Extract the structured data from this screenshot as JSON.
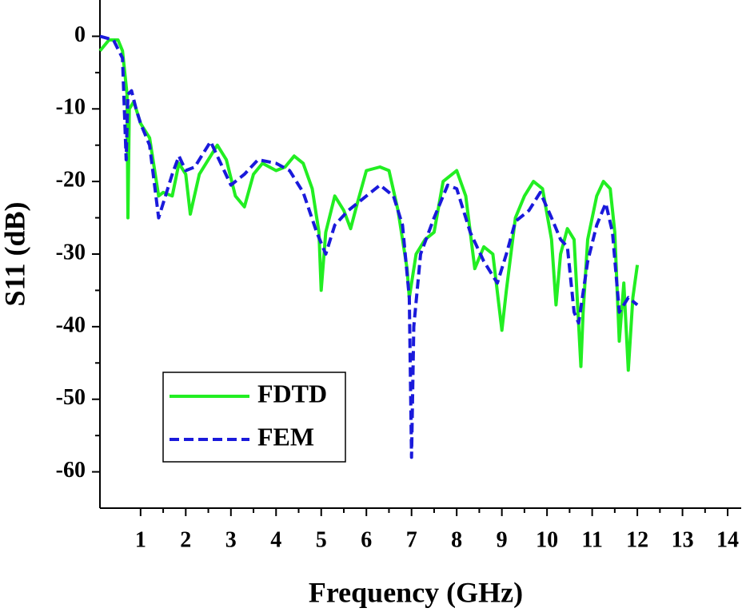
{
  "chart_data": {
    "type": "line",
    "xlabel": "Frequency (GHz)",
    "ylabel": "S11 (dB)",
    "xlim": [
      0.1,
      14.3
    ],
    "xticks": [
      1,
      2,
      3,
      4,
      5,
      6,
      7,
      8,
      9,
      10,
      11,
      12,
      13,
      14
    ],
    "ylim": [
      -65,
      5
    ],
    "yticks": [
      0,
      -10,
      -20,
      -30,
      -40,
      -50,
      -60
    ],
    "legend": "lower left",
    "series": [
      {
        "name": "FDTD",
        "color": "#22ee22",
        "dash": false,
        "x": [
          0.1,
          0.3,
          0.5,
          0.6,
          0.7,
          0.72,
          0.75,
          0.85,
          1.0,
          1.2,
          1.4,
          1.5,
          1.7,
          1.85,
          2.0,
          2.1,
          2.3,
          2.5,
          2.7,
          2.9,
          3.1,
          3.3,
          3.5,
          3.7,
          4.0,
          4.2,
          4.4,
          4.6,
          4.8,
          4.95,
          5.0,
          5.1,
          5.3,
          5.5,
          5.65,
          5.8,
          6.0,
          6.3,
          6.5,
          6.7,
          6.9,
          6.95,
          7.1,
          7.3,
          7.5,
          7.7,
          7.9,
          8.0,
          8.2,
          8.4,
          8.6,
          8.8,
          9.0,
          9.1,
          9.3,
          9.5,
          9.7,
          9.9,
          10.1,
          10.2,
          10.3,
          10.45,
          10.6,
          10.75,
          10.8,
          10.9,
          11.1,
          11.25,
          11.4,
          11.5,
          11.6,
          11.7,
          11.8,
          11.9,
          12.0
        ],
        "values": [
          -2,
          -0.5,
          -0.5,
          -2,
          -8,
          -25,
          -10,
          -9,
          -12,
          -14,
          -22,
          -21.5,
          -22,
          -17.5,
          -19,
          -24.5,
          -19,
          -17,
          -15,
          -17,
          -22,
          -23.5,
          -19,
          -17.5,
          -18.5,
          -18,
          -16.5,
          -17.5,
          -21,
          -27,
          -35,
          -27,
          -22,
          -24,
          -26.5,
          -23,
          -18.5,
          -18,
          -18.5,
          -24,
          -32,
          -36,
          -30,
          -28,
          -27,
          -20,
          -19,
          -18.5,
          -22,
          -32,
          -29,
          -30,
          -40.5,
          -35,
          -25,
          -22,
          -20,
          -21,
          -28,
          -37,
          -30,
          -26.5,
          -28,
          -45.5,
          -38,
          -28,
          -22,
          -20,
          -21,
          -27,
          -42,
          -34,
          -46,
          -36,
          -31.5
        ]
      },
      {
        "name": "FEM",
        "color": "#1a1adb",
        "dash": true,
        "x": [
          0.1,
          0.4,
          0.6,
          0.68,
          0.72,
          0.8,
          0.9,
          1.0,
          1.2,
          1.4,
          1.5,
          1.7,
          1.85,
          2.0,
          2.2,
          2.4,
          2.55,
          2.7,
          3.0,
          3.3,
          3.6,
          4.0,
          4.3,
          4.6,
          4.9,
          5.1,
          5.3,
          5.6,
          6.0,
          6.3,
          6.6,
          6.8,
          6.95,
          7.0,
          7.05,
          7.2,
          7.5,
          7.8,
          8.0,
          8.3,
          8.6,
          8.9,
          9.1,
          9.3,
          9.6,
          9.85,
          10.1,
          10.3,
          10.45,
          10.6,
          10.7,
          10.9,
          11.1,
          11.3,
          11.45,
          11.6,
          11.8,
          12.0
        ],
        "values": [
          0,
          -0.5,
          -3,
          -17,
          -8,
          -7.5,
          -10,
          -12,
          -15,
          -25,
          -23,
          -19,
          -16.5,
          -18.5,
          -18,
          -16,
          -14.5,
          -16.5,
          -20.5,
          -19,
          -17,
          -17.5,
          -18.5,
          -21.5,
          -27,
          -30,
          -26,
          -24,
          -22,
          -20.5,
          -22,
          -26,
          -36,
          -58,
          -40,
          -30,
          -25,
          -20.5,
          -21,
          -27,
          -31,
          -34,
          -30,
          -25.5,
          -24,
          -21.5,
          -25,
          -28,
          -29,
          -38,
          -39.5,
          -31,
          -26,
          -23,
          -27,
          -38,
          -36,
          -37
        ]
      }
    ]
  }
}
